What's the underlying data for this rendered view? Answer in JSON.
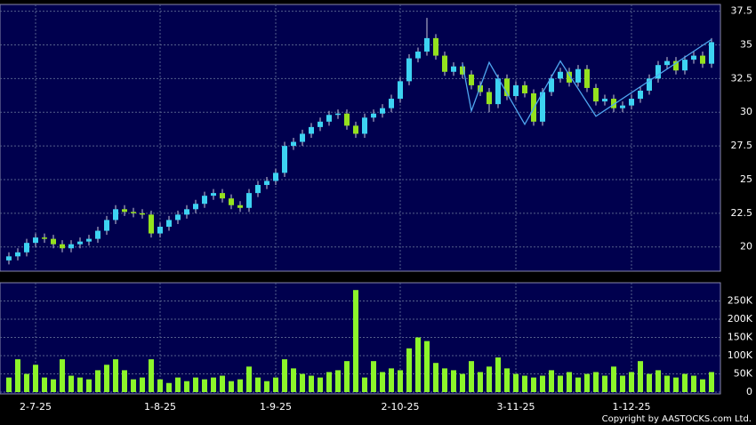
{
  "chart_data": {
    "type": "candlestick",
    "categories": [
      null,
      null,
      null,
      "2-7-25",
      null,
      null,
      null,
      null,
      null,
      null,
      null,
      null,
      null,
      null,
      null,
      null,
      null,
      "1-8-25",
      null,
      null,
      null,
      null,
      null,
      null,
      null,
      null,
      null,
      null,
      null,
      null,
      "1-9-25",
      null,
      null,
      null,
      null,
      null,
      null,
      null,
      null,
      null,
      null,
      null,
      null,
      null,
      "2-10-25",
      null,
      null,
      null,
      null,
      null,
      null,
      null,
      null,
      null,
      null,
      null,
      null,
      "3-11-25",
      null,
      null,
      null,
      null,
      null,
      null,
      null,
      null,
      null,
      null,
      null,
      null,
      "1-12-25",
      null,
      null,
      null,
      null,
      null,
      null,
      null,
      null,
      null
    ],
    "open": [
      19.0,
      19.3,
      19.6,
      20.3,
      20.7,
      20.6,
      20.2,
      19.9,
      20.2,
      20.4,
      20.6,
      21.2,
      22.0,
      22.8,
      22.6,
      22.5,
      22.4,
      21.0,
      21.5,
      22.0,
      22.4,
      22.8,
      23.2,
      23.8,
      24.0,
      23.6,
      23.1,
      22.9,
      24.0,
      24.6,
      24.9,
      25.5,
      27.5,
      27.8,
      28.4,
      28.9,
      29.3,
      29.8,
      29.9,
      29.0,
      28.4,
      29.6,
      29.9,
      30.3,
      31.0,
      32.3,
      34.0,
      34.5,
      35.5,
      34.2,
      33.0,
      33.4,
      32.8,
      32.0,
      31.5,
      30.6,
      32.5,
      31.2,
      32.0,
      31.4,
      29.3,
      31.5,
      32.5,
      33.0,
      32.2,
      33.2,
      31.8,
      30.8,
      31.0,
      30.3,
      30.5,
      31.0,
      31.6,
      32.5,
      33.5,
      33.8,
      33.1,
      33.9,
      34.2,
      33.6
    ],
    "high": [
      19.6,
      19.9,
      20.6,
      21.0,
      21.0,
      20.9,
      20.5,
      20.5,
      20.7,
      20.9,
      21.5,
      22.3,
      23.1,
      23.1,
      22.9,
      22.8,
      22.7,
      21.8,
      22.3,
      22.7,
      23.1,
      23.5,
      24.1,
      24.3,
      24.3,
      23.9,
      23.4,
      24.3,
      24.9,
      25.2,
      25.8,
      27.8,
      28.1,
      28.7,
      29.2,
      29.6,
      30.1,
      30.2,
      30.2,
      29.3,
      29.9,
      30.2,
      30.6,
      31.3,
      32.6,
      34.3,
      34.8,
      37.0,
      35.8,
      34.5,
      33.7,
      33.7,
      33.1,
      32.3,
      31.8,
      32.8,
      32.8,
      32.3,
      32.3,
      31.7,
      31.8,
      32.8,
      33.3,
      33.3,
      33.5,
      33.5,
      32.1,
      31.3,
      31.3,
      30.8,
      31.3,
      31.9,
      32.8,
      33.8,
      34.1,
      34.1,
      34.2,
      34.5,
      34.5,
      35.5
    ],
    "low": [
      18.7,
      19.0,
      19.3,
      20.0,
      20.3,
      19.9,
      19.6,
      19.6,
      19.9,
      20.1,
      20.3,
      20.9,
      21.7,
      22.3,
      22.2,
      22.1,
      20.7,
      20.7,
      21.2,
      21.7,
      22.1,
      22.5,
      22.9,
      23.5,
      23.3,
      22.8,
      22.6,
      22.6,
      23.7,
      24.3,
      24.6,
      25.2,
      27.2,
      27.5,
      28.1,
      28.6,
      29.0,
      29.5,
      28.7,
      28.1,
      28.1,
      29.3,
      29.6,
      30.0,
      30.7,
      32.0,
      33.7,
      34.2,
      33.9,
      32.7,
      32.7,
      32.5,
      31.7,
      31.2,
      30.0,
      30.3,
      30.9,
      30.9,
      31.1,
      29.0,
      29.0,
      31.2,
      32.2,
      31.9,
      31.9,
      31.5,
      30.5,
      30.5,
      30.0,
      30.0,
      30.2,
      30.7,
      31.3,
      32.2,
      33.2,
      32.8,
      32.8,
      33.6,
      33.3,
      33.3
    ],
    "close": [
      19.3,
      19.6,
      20.3,
      20.7,
      20.6,
      20.2,
      19.9,
      20.2,
      20.4,
      20.6,
      21.2,
      22.0,
      22.8,
      22.6,
      22.5,
      22.4,
      21.0,
      21.5,
      22.0,
      22.4,
      22.8,
      23.2,
      23.8,
      24.0,
      23.6,
      23.1,
      22.9,
      24.0,
      24.6,
      24.9,
      25.5,
      27.5,
      27.8,
      28.4,
      28.9,
      29.3,
      29.8,
      29.9,
      29.0,
      28.4,
      29.6,
      29.9,
      30.3,
      31.0,
      32.3,
      34.0,
      34.5,
      35.5,
      34.2,
      33.0,
      33.4,
      32.8,
      32.0,
      31.5,
      30.6,
      32.5,
      31.2,
      32.0,
      31.4,
      29.3,
      31.5,
      32.5,
      33.0,
      32.2,
      33.2,
      31.8,
      30.8,
      31.0,
      30.3,
      30.5,
      31.0,
      31.6,
      32.5,
      33.5,
      33.8,
      33.1,
      33.9,
      34.2,
      33.6,
      35.2
    ],
    "up_color": "#3dd3f2",
    "down_color": "#95e21e",
    "wick_color": "#c8c8d8",
    "volume": [
      40000,
      90000,
      50000,
      75000,
      40000,
      35000,
      90000,
      45000,
      40000,
      35000,
      60000,
      75000,
      90000,
      60000,
      35000,
      40000,
      90000,
      35000,
      25000,
      40000,
      30000,
      40000,
      35000,
      40000,
      45000,
      30000,
      35000,
      70000,
      40000,
      30000,
      40000,
      90000,
      65000,
      50000,
      45000,
      40000,
      55000,
      60000,
      85000,
      280000,
      40000,
      85000,
      55000,
      65000,
      60000,
      120000,
      150000,
      140000,
      80000,
      65000,
      60000,
      50000,
      85000,
      55000,
      70000,
      95000,
      65000,
      50000,
      45000,
      40000,
      45000,
      60000,
      45000,
      55000,
      40000,
      50000,
      55000,
      45000,
      70000,
      45000,
      55000,
      85000,
      50000,
      60000,
      45000,
      40000,
      50000,
      45000,
      35000,
      55000
    ],
    "volume_color": "#8cf52a",
    "overlay": {
      "x": [
        51,
        52,
        54,
        58,
        62,
        66,
        79
      ],
      "values": [
        33.6,
        30.1,
        33.7,
        29.1,
        33.8,
        29.7,
        35.4
      ],
      "color": "#4fa6f0"
    },
    "ylim": [
      18.2,
      38
    ],
    "yticks": [
      20,
      22.5,
      25,
      27.5,
      30,
      32.5,
      35,
      37.5
    ],
    "vlim": [
      0,
      300000
    ],
    "vticks": [
      0,
      {
        "value": 50000,
        "label": "50K"
      },
      {
        "value": 100000,
        "label": "100K"
      },
      {
        "value": 150000,
        "label": "150K"
      },
      {
        "value": 200000,
        "label": "200K"
      },
      {
        "value": 250000,
        "label": "250K"
      }
    ],
    "grid": true,
    "copyright": "Copyright by AASTOCKS.com Ltd."
  }
}
